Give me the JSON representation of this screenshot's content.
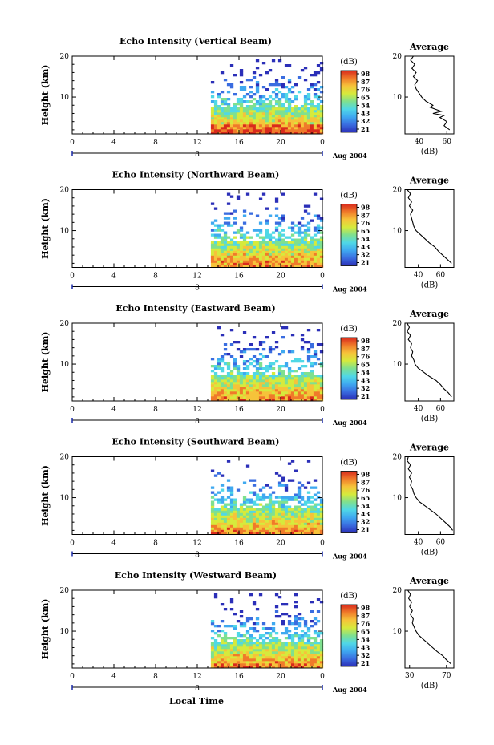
{
  "figure": {
    "xlabel": "Local Time",
    "ylabel": "Height (km)",
    "date_label": "Aug 2004",
    "date_tick": "8",
    "avg_title": "Average",
    "avg_xlabel": "(dB)",
    "colorbar_unit": "(dB)",
    "colorbar_ticks": [
      "98",
      "87",
      "76",
      "65",
      "54",
      "43",
      "32",
      "21"
    ],
    "colorbar_stops": [
      "#2b2fb8",
      "#3a6de0",
      "#3fa9f0",
      "#50d8e6",
      "#7fe08f",
      "#d6ea3c",
      "#f6c33a",
      "#f07a2a",
      "#d92a1c"
    ]
  },
  "chart_data": [
    {
      "type": "heatmap",
      "title": "Echo Intensity (Vertical Beam)",
      "x_ticks": [
        "0",
        "4",
        "8",
        "12",
        "16",
        "20",
        "0"
      ],
      "xlim": [
        0,
        24
      ],
      "y_ticks": [
        "20",
        "10"
      ],
      "ylim": [
        1,
        20
      ],
      "data_start_hour": 13.3,
      "color_range_db": [
        21,
        98
      ],
      "average": {
        "x_ticks": [
          "40",
          "60"
        ],
        "xlim": [
          30,
          65
        ],
        "profile": [
          [
            62,
            2
          ],
          [
            58,
            3
          ],
          [
            60,
            4
          ],
          [
            55,
            5
          ],
          [
            58,
            5.5
          ],
          [
            50,
            6
          ],
          [
            56,
            6.5
          ],
          [
            52,
            7
          ],
          [
            48,
            7.5
          ],
          [
            50,
            8
          ],
          [
            45,
            9
          ],
          [
            42,
            10
          ],
          [
            40,
            11
          ],
          [
            38,
            12
          ],
          [
            37,
            13
          ],
          [
            39,
            14
          ],
          [
            36,
            15
          ],
          [
            38,
            16
          ],
          [
            35,
            17
          ],
          [
            37,
            18
          ],
          [
            34,
            19
          ],
          [
            36,
            20
          ]
        ]
      }
    },
    {
      "type": "heatmap",
      "title": "Echo Intensity (Northward Beam)",
      "x_ticks": [
        "0",
        "4",
        "8",
        "12",
        "16",
        "20",
        "0"
      ],
      "xlim": [
        0,
        24
      ],
      "y_ticks": [
        "20",
        "10"
      ],
      "ylim": [
        1,
        20
      ],
      "data_start_hour": 13.3,
      "color_range_db": [
        21,
        98
      ],
      "average": {
        "x_ticks": [
          "40",
          "60"
        ],
        "xlim": [
          28,
          72
        ],
        "profile": [
          [
            70,
            2
          ],
          [
            66,
            3
          ],
          [
            62,
            4
          ],
          [
            58,
            5
          ],
          [
            55,
            6
          ],
          [
            50,
            7
          ],
          [
            46,
            8
          ],
          [
            42,
            9
          ],
          [
            38,
            10
          ],
          [
            36,
            11
          ],
          [
            35,
            12
          ],
          [
            34,
            13
          ],
          [
            33,
            14
          ],
          [
            35,
            15
          ],
          [
            32,
            16
          ],
          [
            34,
            17
          ],
          [
            31,
            18
          ],
          [
            33,
            19
          ],
          [
            30,
            20
          ]
        ]
      }
    },
    {
      "type": "heatmap",
      "title": "Echo Intensity (Eastward Beam)",
      "x_ticks": [
        "0",
        "4",
        "8",
        "12",
        "16",
        "20",
        "0"
      ],
      "xlim": [
        0,
        24
      ],
      "y_ticks": [
        "20",
        "10"
      ],
      "ylim": [
        1,
        20
      ],
      "data_start_hour": 13.3,
      "color_range_db": [
        21,
        98
      ],
      "average": {
        "x_ticks": [
          "40",
          "60"
        ],
        "xlim": [
          28,
          72
        ],
        "profile": [
          [
            70,
            2
          ],
          [
            67,
            3
          ],
          [
            63,
            4
          ],
          [
            60,
            5
          ],
          [
            56,
            6
          ],
          [
            50,
            7
          ],
          [
            45,
            8
          ],
          [
            40,
            9
          ],
          [
            37,
            10
          ],
          [
            36,
            11
          ],
          [
            34,
            12
          ],
          [
            35,
            13
          ],
          [
            33,
            14
          ],
          [
            34,
            15
          ],
          [
            31,
            16
          ],
          [
            33,
            17
          ],
          [
            30,
            18
          ],
          [
            32,
            19
          ],
          [
            30,
            20
          ]
        ]
      }
    },
    {
      "type": "heatmap",
      "title": "Echo Intensity (Southward Beam)",
      "x_ticks": [
        "0",
        "4",
        "8",
        "12",
        "16",
        "20",
        "0"
      ],
      "xlim": [
        0,
        24
      ],
      "y_ticks": [
        "20",
        "10"
      ],
      "ylim": [
        1,
        20
      ],
      "data_start_hour": 13.3,
      "color_range_db": [
        21,
        98
      ],
      "average": {
        "x_ticks": [
          "40",
          "60"
        ],
        "xlim": [
          28,
          72
        ],
        "profile": [
          [
            71,
            2
          ],
          [
            68,
            3
          ],
          [
            64,
            4
          ],
          [
            60,
            5
          ],
          [
            56,
            6
          ],
          [
            51,
            7
          ],
          [
            46,
            8
          ],
          [
            41,
            9
          ],
          [
            38,
            10
          ],
          [
            36,
            11
          ],
          [
            35,
            12
          ],
          [
            33,
            13
          ],
          [
            34,
            14
          ],
          [
            32,
            15
          ],
          [
            34,
            16
          ],
          [
            31,
            17
          ],
          [
            33,
            18
          ],
          [
            30,
            19
          ],
          [
            31,
            20
          ]
        ]
      }
    },
    {
      "type": "heatmap",
      "title": "Echo Intensity (Westward Beam)",
      "x_ticks": [
        "0",
        "4",
        "8",
        "12",
        "16",
        "20",
        "0"
      ],
      "xlim": [
        0,
        24
      ],
      "y_ticks": [
        "20",
        "10"
      ],
      "ylim": [
        1,
        20
      ],
      "data_start_hour": 13.3,
      "color_range_db": [
        21,
        98
      ],
      "average": {
        "x_ticks": [
          "30",
          "70"
        ],
        "xlim": [
          25,
          78
        ],
        "profile": [
          [
            75,
            2
          ],
          [
            70,
            3
          ],
          [
            66,
            4
          ],
          [
            60,
            5
          ],
          [
            55,
            6
          ],
          [
            50,
            7
          ],
          [
            45,
            8
          ],
          [
            40,
            9
          ],
          [
            37,
            10
          ],
          [
            35,
            11
          ],
          [
            33,
            12
          ],
          [
            34,
            13
          ],
          [
            31,
            14
          ],
          [
            33,
            15
          ],
          [
            30,
            16
          ],
          [
            32,
            17
          ],
          [
            29,
            18
          ],
          [
            31,
            19
          ],
          [
            28,
            20
          ]
        ]
      }
    }
  ]
}
